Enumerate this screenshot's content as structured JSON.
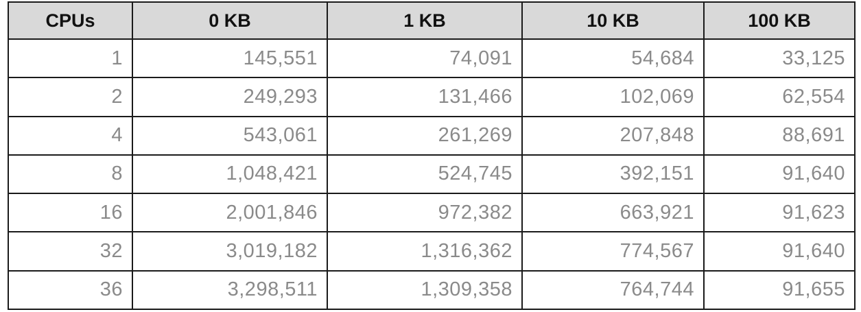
{
  "table": {
    "headers": [
      "CPUs",
      "0 KB",
      "1 KB",
      "10 KB",
      "100 KB"
    ],
    "rows": [
      [
        "1",
        "145,551",
        "74,091",
        "54,684",
        "33,125"
      ],
      [
        "2",
        "249,293",
        "131,466",
        "102,069",
        "62,554"
      ],
      [
        "4",
        "543,061",
        "261,269",
        "207,848",
        "88,691"
      ],
      [
        "8",
        "1,048,421",
        "524,745",
        "392,151",
        "91,640"
      ],
      [
        "16",
        "2,001,846",
        "972,382",
        "663,921",
        "91,623"
      ],
      [
        "32",
        "3,019,182",
        "1,316,362",
        "774,567",
        "91,640"
      ],
      [
        "36",
        "3,298,511",
        "1,309,358",
        "764,744",
        "91,655"
      ]
    ],
    "colors": {
      "header_bg": "#d9d9d9",
      "header_text": "#111111",
      "cell_text": "#8a8a8a",
      "border": "#1a1a1a"
    }
  }
}
